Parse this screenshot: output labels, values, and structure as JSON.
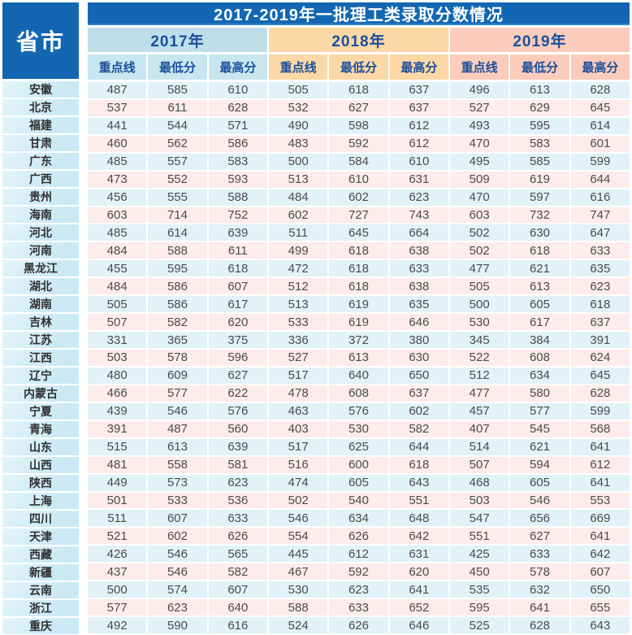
{
  "table": {
    "title": "2017-2019年一批理工类录取分数情况",
    "corner_label": "省市",
    "year_groups": [
      {
        "label": "2017年",
        "columns": [
          "重点线",
          "最低分",
          "最高分"
        ]
      },
      {
        "label": "2018年",
        "columns": [
          "重点线",
          "最低分",
          "最高分"
        ]
      },
      {
        "label": "2019年",
        "columns": [
          "重点线",
          "最低分",
          "最高分"
        ]
      }
    ]
  },
  "colors": {
    "header_blue": "#1367b2",
    "header_text": "#1b4f9c",
    "group_2017": "#bedfe9",
    "group_2017_sub": "#c8e6ef",
    "group_2018": "#fbd8a6",
    "group_2019": "#fbccbb",
    "row_cyan": "#e1f2f8",
    "row_pink": "#fdeceb",
    "province_bg": "#cbe9f4",
    "number_text": "#4b4b4b",
    "province_text": "#2f2f2f"
  },
  "chart_data": {
    "type": "table",
    "title": "2017-2019年一批理工类录取分数情况",
    "row_header": "省市",
    "column_groups": [
      "2017年",
      "2018年",
      "2019年"
    ],
    "columns_per_group": [
      "重点线",
      "最低分",
      "最高分"
    ],
    "rows": [
      {
        "province": "安徽",
        "values": [
          487,
          585,
          610,
          505,
          618,
          637,
          496,
          613,
          628
        ]
      },
      {
        "province": "北京",
        "values": [
          537,
          611,
          628,
          532,
          627,
          637,
          527,
          629,
          645
        ]
      },
      {
        "province": "福建",
        "values": [
          441,
          544,
          571,
          490,
          598,
          612,
          493,
          595,
          614
        ]
      },
      {
        "province": "甘肃",
        "values": [
          460,
          562,
          586,
          483,
          592,
          612,
          470,
          583,
          601
        ]
      },
      {
        "province": "广东",
        "values": [
          485,
          557,
          583,
          500,
          584,
          610,
          495,
          585,
          599
        ]
      },
      {
        "province": "广西",
        "values": [
          473,
          552,
          593,
          513,
          610,
          631,
          509,
          619,
          644
        ]
      },
      {
        "province": "贵州",
        "values": [
          456,
          555,
          588,
          484,
          602,
          623,
          470,
          597,
          616
        ]
      },
      {
        "province": "海南",
        "values": [
          603,
          714,
          752,
          602,
          727,
          743,
          603,
          732,
          747
        ]
      },
      {
        "province": "河北",
        "values": [
          485,
          614,
          639,
          511,
          645,
          664,
          502,
          630,
          647
        ]
      },
      {
        "province": "河南",
        "values": [
          484,
          588,
          611,
          499,
          618,
          638,
          502,
          618,
          633
        ]
      },
      {
        "province": "黑龙江",
        "values": [
          455,
          595,
          618,
          472,
          618,
          633,
          477,
          621,
          635
        ]
      },
      {
        "province": "湖北",
        "values": [
          484,
          586,
          607,
          512,
          618,
          638,
          505,
          613,
          623
        ]
      },
      {
        "province": "湖南",
        "values": [
          505,
          586,
          617,
          513,
          619,
          635,
          500,
          605,
          618
        ]
      },
      {
        "province": "吉林",
        "values": [
          507,
          582,
          620,
          533,
          619,
          646,
          530,
          617,
          637
        ]
      },
      {
        "province": "江苏",
        "values": [
          331,
          365,
          375,
          336,
          372,
          380,
          345,
          384,
          391
        ]
      },
      {
        "province": "江西",
        "values": [
          503,
          578,
          596,
          527,
          613,
          630,
          522,
          608,
          624
        ]
      },
      {
        "province": "辽宁",
        "values": [
          480,
          609,
          627,
          517,
          640,
          650,
          512,
          634,
          645
        ]
      },
      {
        "province": "内蒙古",
        "values": [
          466,
          577,
          622,
          478,
          608,
          637,
          477,
          580,
          628
        ]
      },
      {
        "province": "宁夏",
        "values": [
          439,
          546,
          576,
          463,
          576,
          602,
          457,
          577,
          599
        ]
      },
      {
        "province": "青海",
        "values": [
          391,
          487,
          560,
          403,
          530,
          582,
          407,
          545,
          568
        ]
      },
      {
        "province": "山东",
        "values": [
          515,
          613,
          639,
          517,
          625,
          644,
          514,
          621,
          641
        ]
      },
      {
        "province": "山西",
        "values": [
          481,
          558,
          581,
          516,
          600,
          618,
          507,
          594,
          612
        ]
      },
      {
        "province": "陕西",
        "values": [
          449,
          573,
          623,
          474,
          605,
          643,
          468,
          605,
          641
        ]
      },
      {
        "province": "上海",
        "values": [
          501,
          533,
          536,
          502,
          540,
          551,
          503,
          546,
          553
        ]
      },
      {
        "province": "四川",
        "values": [
          511,
          607,
          633,
          546,
          634,
          648,
          547,
          656,
          669
        ]
      },
      {
        "province": "天津",
        "values": [
          521,
          602,
          626,
          554,
          626,
          642,
          551,
          627,
          641
        ]
      },
      {
        "province": "西藏",
        "values": [
          426,
          546,
          565,
          445,
          612,
          631,
          425,
          633,
          642
        ]
      },
      {
        "province": "新疆",
        "values": [
          437,
          546,
          582,
          467,
          592,
          620,
          450,
          578,
          607
        ]
      },
      {
        "province": "云南",
        "values": [
          500,
          574,
          607,
          530,
          623,
          641,
          535,
          632,
          650
        ]
      },
      {
        "province": "浙江",
        "values": [
          577,
          623,
          640,
          588,
          633,
          652,
          595,
          641,
          655
        ]
      },
      {
        "province": "重庆",
        "values": [
          492,
          590,
          616,
          524,
          626,
          646,
          525,
          628,
          643
        ]
      }
    ]
  }
}
